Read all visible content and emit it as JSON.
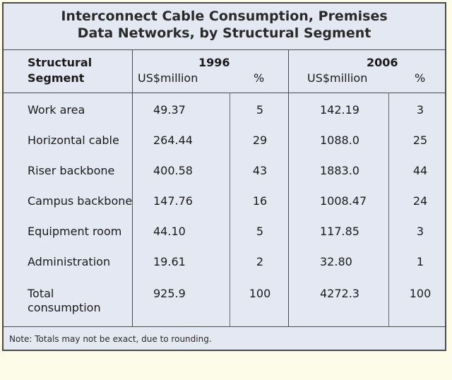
{
  "chart_data": {
    "type": "table",
    "title_line1": "Interconnect Cable Consumption, Premises",
    "title_line2": "Data Networks, by Structural Segment",
    "columns": {
      "segment_header_line1": "Structural",
      "segment_header_line2": "Segment",
      "year1": "1996",
      "year2": "2006",
      "usd_label": "US$million",
      "pct_label": "%"
    },
    "rows": [
      {
        "segment": "Work area",
        "usd_1996": "49.37",
        "pct_1996": "5",
        "usd_2006": "142.19",
        "pct_2006": "3"
      },
      {
        "segment": "Horizontal cable",
        "usd_1996": "264.44",
        "pct_1996": "29",
        "usd_2006": "1088.0",
        "pct_2006": "25"
      },
      {
        "segment": "Riser backbone",
        "usd_1996": "400.58",
        "pct_1996": "43",
        "usd_2006": "1883.0",
        "pct_2006": "44"
      },
      {
        "segment": "Campus backbone",
        "usd_1996": "147.76",
        "pct_1996": "16",
        "usd_2006": "1008.47",
        "pct_2006": "24"
      },
      {
        "segment": "Equipment room",
        "usd_1996": "44.10",
        "pct_1996": "5",
        "usd_2006": "117.85",
        "pct_2006": "3"
      },
      {
        "segment": "Administration",
        "usd_1996": "19.61",
        "pct_1996": "2",
        "usd_2006": "32.80",
        "pct_2006": "1"
      }
    ],
    "total": {
      "segment_line1": "Total",
      "segment_line2": "consumption",
      "usd_1996": "925.9",
      "pct_1996": "100",
      "usd_2006": "4272.3",
      "pct_2006": "100"
    },
    "note": "Note: Totals may not be exact, due to rounding."
  }
}
